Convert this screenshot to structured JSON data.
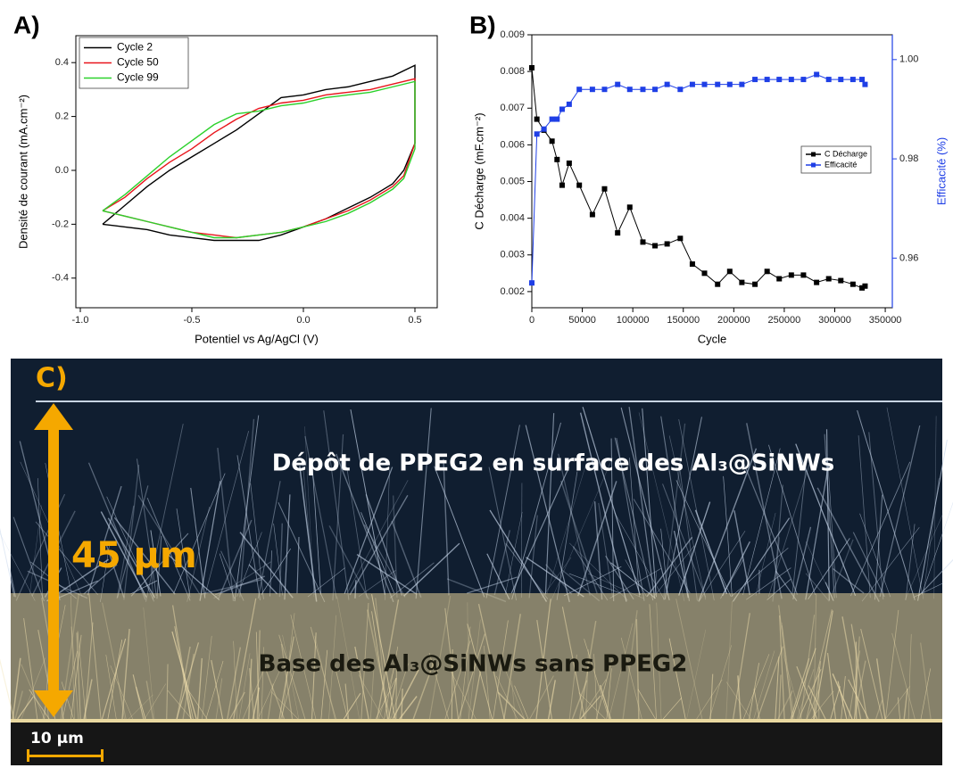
{
  "chart_data": [
    {
      "type": "line",
      "panel_label": "A)",
      "xlabel": "Potentiel vs Ag/AgCl (V)",
      "ylabel": "Densité de courant (mA.cm⁻²)",
      "xlim": [
        -1.02,
        0.6
      ],
      "xticks": [
        {
          "value": -1,
          "label": "-1.0"
        },
        -0.5,
        {
          "value": 0,
          "label": "0.0"
        },
        0.5
      ],
      "ylim": [
        -0.51,
        0.5
      ],
      "yticks": [
        0.4,
        0.2,
        {
          "value": 0,
          "label": "0.0"
        },
        -0.2,
        -0.4
      ],
      "grid": false,
      "legend": "upper left",
      "x": [
        -0.9,
        -0.8,
        -0.7,
        -0.6,
        -0.5,
        -0.4,
        -0.3,
        -0.2,
        -0.1,
        0.0,
        0.1,
        0.2,
        0.3,
        0.4,
        0.5,
        0.5,
        0.45,
        0.4,
        0.3,
        0.2,
        0.1,
        0.0,
        -0.1,
        -0.2,
        -0.3,
        -0.4,
        -0.5,
        -0.6,
        -0.7,
        -0.8,
        -0.9
      ],
      "series": [
        {
          "name": "Cycle 2",
          "color": "#000000",
          "values": [
            -0.2,
            -0.13,
            -0.06,
            0.0,
            0.05,
            0.1,
            0.15,
            0.21,
            0.27,
            0.28,
            0.3,
            0.31,
            0.33,
            0.35,
            0.39,
            0.1,
            0.0,
            -0.05,
            -0.1,
            -0.14,
            -0.18,
            -0.21,
            -0.24,
            -0.26,
            -0.26,
            -0.26,
            -0.25,
            -0.24,
            -0.22,
            -0.21,
            -0.2
          ]
        },
        {
          "name": "Cycle 50",
          "color": "#e8141b",
          "values": [
            -0.15,
            -0.1,
            -0.03,
            0.03,
            0.08,
            0.14,
            0.19,
            0.23,
            0.25,
            0.26,
            0.28,
            0.29,
            0.3,
            0.32,
            0.34,
            0.1,
            -0.02,
            -0.06,
            -0.11,
            -0.15,
            -0.18,
            -0.21,
            -0.23,
            -0.24,
            -0.25,
            -0.24,
            -0.23,
            -0.21,
            -0.19,
            -0.17,
            -0.15
          ]
        },
        {
          "name": "Cycle 99",
          "color": "#2bd12b",
          "values": [
            -0.15,
            -0.09,
            -0.02,
            0.05,
            0.11,
            0.17,
            0.21,
            0.22,
            0.24,
            0.25,
            0.27,
            0.28,
            0.29,
            0.31,
            0.33,
            0.08,
            -0.03,
            -0.07,
            -0.12,
            -0.16,
            -0.19,
            -0.21,
            -0.23,
            -0.24,
            -0.25,
            -0.25,
            -0.23,
            -0.21,
            -0.19,
            -0.17,
            -0.15
          ]
        }
      ]
    },
    {
      "type": "line",
      "panel_label": "B)",
      "xlabel": "Cycle",
      "ylabel": "C Décharge (mF.cm⁻²)",
      "y2label": "Efficacité (%)",
      "marker": "square",
      "grid": false,
      "legend": "center right",
      "xlim": [
        0,
        357000
      ],
      "xticks": [
        0,
        50000,
        100000,
        150000,
        200000,
        250000,
        300000,
        350000
      ],
      "ylim": [
        0.00156,
        0.009
      ],
      "yticks": [
        0.002,
        0.003,
        0.004,
        0.005,
        0.006,
        0.007,
        0.008,
        0.009
      ],
      "y2lim": [
        0.95,
        1.005
      ],
      "y2ticks": [
        {
          "value": 1,
          "label": "1.00"
        },
        0.98,
        0.96
      ],
      "x": [
        0,
        5000,
        12000,
        20000,
        25000,
        30000,
        37000,
        47000,
        60000,
        72000,
        85000,
        97000,
        110000,
        122000,
        134000,
        147000,
        159000,
        171000,
        184000,
        196000,
        208000,
        221000,
        233000,
        245000,
        257000,
        269000,
        282000,
        294000,
        306000,
        318000,
        327000,
        330000
      ],
      "series": [
        {
          "name": "C Décharge",
          "color": "#000000",
          "values": [
            0.0081,
            0.0067,
            0.0064,
            0.0061,
            0.0056,
            0.0049,
            0.0055,
            0.0049,
            0.0041,
            0.0048,
            0.0036,
            0.0043,
            0.00335,
            0.00325,
            0.0033,
            0.00345,
            0.00275,
            0.0025,
            0.0022,
            0.00255,
            0.00225,
            0.0022,
            0.00255,
            0.00235,
            0.00245,
            0.00245,
            0.00225,
            0.00235,
            0.0023,
            0.0022,
            0.0021,
            0.00215
          ]
        },
        {
          "name": "Efficacité",
          "color": "#1f3fe6",
          "axis": "y2",
          "values": [
            0.955,
            0.985,
            0.986,
            0.988,
            0.988,
            0.99,
            0.991,
            0.994,
            0.994,
            0.994,
            0.995,
            0.994,
            0.994,
            0.994,
            0.995,
            0.994,
            0.995,
            0.995,
            0.995,
            0.995,
            0.995,
            0.996,
            0.996,
            0.996,
            0.996,
            0.996,
            0.997,
            0.996,
            0.996,
            0.996,
            0.996,
            0.995
          ]
        }
      ]
    }
  ],
  "panel_c": {
    "label": "C)",
    "top_text": "Dépôt de PPEG2 en surface des Al₃@SiNWs",
    "base_text": "Base des Al₃@SiNWs sans PPEG2",
    "height_label": "45 µm",
    "scale_label": "10 µm"
  }
}
